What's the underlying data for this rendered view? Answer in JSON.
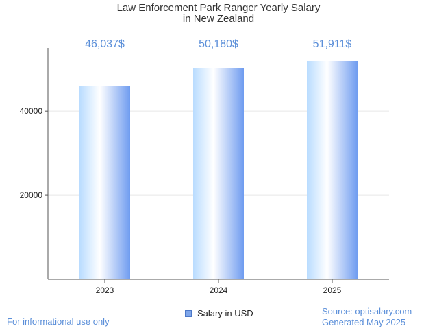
{
  "chart_data": {
    "type": "bar",
    "title_lines": [
      "Law Enforcement Park Ranger Yearly Salary",
      "in New Zealand"
    ],
    "categories": [
      "2023",
      "2024",
      "2025"
    ],
    "values": [
      46037,
      50180,
      51911
    ],
    "value_labels": [
      "46,037$",
      "50,180$",
      "51,911$"
    ],
    "y_ticks": [
      20000,
      40000
    ],
    "ylim": [
      0,
      55000
    ],
    "legend": "Salary in USD",
    "legend_placement": "bottom-center",
    "grid": true
  },
  "colors": {
    "bar_light": "#ffffff",
    "bar_mid": "#b9dcff",
    "bar_dark": "#6f9cf0",
    "label": "#5b8fd9",
    "grid": "#e6e6e6",
    "axis": "#555555"
  },
  "footer": {
    "disclaimer": "For informational use only",
    "source": "Source: optisalary.com",
    "generated": "Generated May 2025"
  }
}
